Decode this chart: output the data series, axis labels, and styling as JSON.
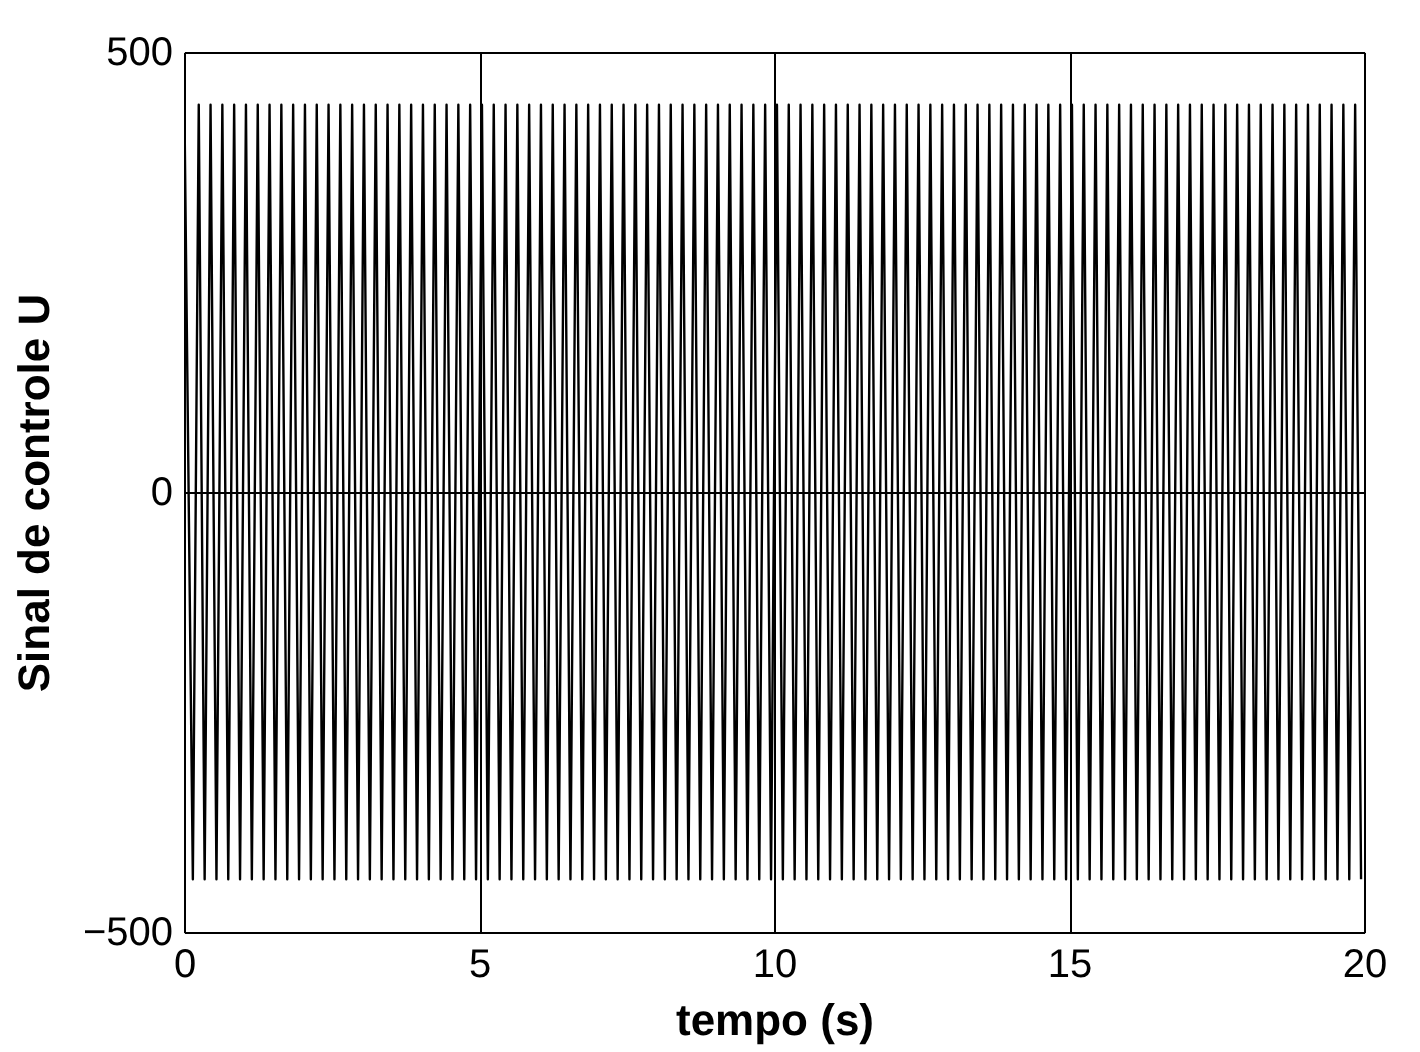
{
  "chart_data": {
    "type": "line",
    "xlabel": "tempo (s)",
    "ylabel": "Sinal de controle U",
    "xlim": [
      0,
      20
    ],
    "ylim": [
      -500,
      500
    ],
    "xticks": [
      0,
      5,
      10,
      15,
      20
    ],
    "yticks": [
      -500,
      0,
      500
    ],
    "grid": true,
    "x": [
      0,
      0.15,
      0.25,
      0.35,
      0.45,
      0.55,
      0.65,
      0.75,
      0.85,
      0.95,
      1.05,
      1.15,
      1.25,
      1.35,
      1.45,
      1.55,
      1.65,
      1.75,
      1.85,
      1.95,
      2.05,
      2.15,
      2.25,
      2.35,
      2.45,
      2.55,
      2.65,
      2.75,
      2.85,
      2.95,
      3.05,
      3.15,
      3.25,
      3.35,
      3.45,
      3.55,
      3.65,
      3.75,
      3.85,
      3.95,
      4.05,
      4.15,
      4.25,
      4.35,
      4.45,
      4.55,
      4.65,
      4.75,
      4.85,
      4.95,
      5.05,
      5.15,
      5.25,
      5.35,
      5.45,
      5.55,
      5.65,
      5.75,
      5.85,
      5.95,
      6.05,
      6.15,
      6.25,
      6.35,
      6.45,
      6.55,
      6.65,
      6.75,
      6.85,
      6.95,
      7.05,
      7.15,
      7.25,
      7.35,
      7.45,
      7.55,
      7.65,
      7.75,
      7.85,
      7.95,
      8.05,
      8.15,
      8.25,
      8.35,
      8.45,
      8.55,
      8.65,
      8.75,
      8.85,
      8.95,
      9.05,
      9.15,
      9.25,
      9.35,
      9.45,
      9.55,
      9.65,
      9.75,
      9.85,
      9.95,
      10.05,
      10.15,
      10.25,
      10.35,
      10.45,
      10.55,
      10.65,
      10.75,
      10.85,
      10.95,
      11.05,
      11.15,
      11.25,
      11.35,
      11.45,
      11.55,
      11.65,
      11.75,
      11.85,
      11.95,
      12.05,
      12.15,
      12.25,
      12.35,
      12.45,
      12.55,
      12.65,
      12.75,
      12.85,
      12.95,
      13.05,
      13.15,
      13.25,
      13.35,
      13.45,
      13.55,
      13.65,
      13.75,
      13.85,
      13.95,
      14.05,
      14.15,
      14.25,
      14.35,
      14.45,
      14.55,
      14.65,
      14.75,
      14.85,
      14.95,
      15.05,
      15.15,
      15.25,
      15.35,
      15.45,
      15.55,
      15.65,
      15.75,
      15.85,
      15.95,
      16.05,
      16.15,
      16.25,
      16.35,
      16.45,
      16.55,
      16.65,
      16.75,
      16.85,
      16.95,
      17.05,
      17.15,
      17.25,
      17.35,
      17.45,
      17.55,
      17.65,
      17.75,
      17.85,
      17.95,
      18.05,
      18.15,
      18.25,
      18.35,
      18.45,
      18.55,
      18.65,
      18.75,
      18.85,
      18.95,
      19.05,
      19.15,
      19.25,
      19.35,
      19.45,
      19.55,
      19.65,
      19.75,
      19.85,
      19.95
    ],
    "series": [
      {
        "color": "#000000",
        "values": [
          480,
          -440,
          440,
          -440,
          440,
          -440,
          440,
          -440,
          440,
          -440,
          440,
          -440,
          440,
          -440,
          440,
          -440,
          440,
          -440,
          440,
          -440,
          440,
          -440,
          440,
          -440,
          440,
          -440,
          440,
          -440,
          440,
          -440,
          440,
          -440,
          440,
          -440,
          440,
          -440,
          440,
          -440,
          440,
          -440,
          440,
          -440,
          440,
          -440,
          440,
          -440,
          440,
          -440,
          440,
          -440,
          440,
          -440,
          440,
          -440,
          440,
          -440,
          440,
          -440,
          440,
          -440,
          440,
          -440,
          440,
          -440,
          440,
          -440,
          440,
          -440,
          440,
          -440,
          440,
          -440,
          440,
          -440,
          440,
          -440,
          440,
          -440,
          440,
          -440,
          440,
          -440,
          440,
          -440,
          440,
          -440,
          440,
          -440,
          440,
          -440,
          440,
          -440,
          440,
          -440,
          440,
          -440,
          440,
          -440,
          440,
          -440,
          440,
          -440,
          440,
          -440,
          440,
          -440,
          440,
          -440,
          440,
          -440,
          440,
          -440,
          440,
          -440,
          440,
          -440,
          440,
          -440,
          440,
          -440,
          440,
          -440,
          440,
          -440,
          440,
          -440,
          440,
          -440,
          440,
          -440,
          440,
          -440,
          440,
          -440,
          440,
          -440,
          440,
          -440,
          440,
          -440,
          440,
          -440,
          440,
          -440,
          440,
          -440,
          440,
          -440,
          440,
          -440,
          440,
          -440,
          440,
          -440,
          440,
          -440,
          440,
          -440,
          440,
          -440,
          440,
          -440,
          440,
          -440,
          440,
          -440,
          440,
          -440,
          440,
          -440,
          440,
          -440,
          440,
          -440,
          440,
          -440,
          440,
          -440,
          440,
          -440,
          440,
          -440,
          440,
          -440,
          440,
          -440,
          440,
          -440,
          440,
          -440,
          440,
          -440,
          440,
          -440,
          440,
          -440,
          440,
          -440,
          440,
          -440
        ]
      }
    ]
  }
}
